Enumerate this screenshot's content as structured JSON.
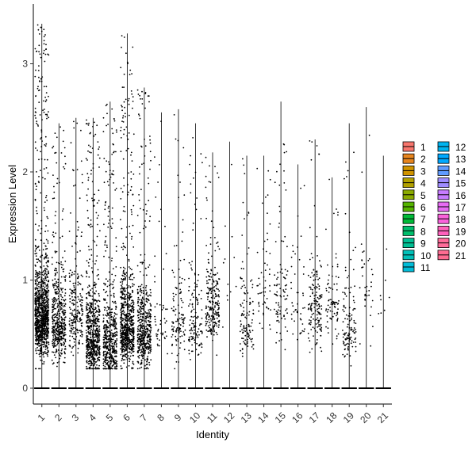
{
  "chart_data": {
    "type": "violin",
    "xlabel": "Identity",
    "ylabel": "Expression Level",
    "ylim": [
      -0.15,
      3.45
    ],
    "y_ticks": [
      0,
      1,
      2,
      3
    ],
    "grid": false,
    "legend_position": "right",
    "categories": [
      "1",
      "2",
      "3",
      "4",
      "5",
      "6",
      "7",
      "8",
      "9",
      "10",
      "11",
      "12",
      "13",
      "14",
      "15",
      "16",
      "17",
      "18",
      "19",
      "20",
      "21"
    ],
    "colors": [
      "#F8766D",
      "#E7851E",
      "#D09400",
      "#B2A100",
      "#8BAB00",
      "#55B400",
      "#00BA38",
      "#00BE6C",
      "#00C094",
      "#00C0B8",
      "#00BCD8",
      "#00B4F0",
      "#00A9FF",
      "#619CFF",
      "#9F8CFF",
      "#C77CFF",
      "#E76BF3",
      "#FA62DB",
      "#FF62BC",
      "#FF6C9A",
      "#FF6C91"
    ],
    "series": [
      {
        "category": "1",
        "max": 3.37,
        "points_est": 1100,
        "median_nonzero": 0.65
      },
      {
        "category": "2",
        "max": 2.45,
        "points_est": 450,
        "median_nonzero": 0.6
      },
      {
        "category": "3",
        "max": 2.5,
        "points_est": 220,
        "median_nonzero": 0.65
      },
      {
        "category": "4",
        "max": 2.5,
        "points_est": 650,
        "median_nonzero": 0.45
      },
      {
        "category": "5",
        "max": 2.65,
        "points_est": 520,
        "median_nonzero": 0.4
      },
      {
        "category": "6",
        "max": 3.28,
        "points_est": 750,
        "median_nonzero": 0.55
      },
      {
        "category": "7",
        "max": 2.78,
        "points_est": 500,
        "median_nonzero": 0.5
      },
      {
        "category": "8",
        "max": 2.55,
        "points_est": 50,
        "median_nonzero": 0.6
      },
      {
        "category": "9",
        "max": 2.58,
        "points_est": 120,
        "median_nonzero": 0.6
      },
      {
        "category": "10",
        "max": 2.45,
        "points_est": 130,
        "median_nonzero": 0.6
      },
      {
        "category": "11",
        "max": 2.18,
        "points_est": 230,
        "median_nonzero": 0.75
      },
      {
        "category": "12",
        "max": 2.28,
        "points_est": 12,
        "median_nonzero": 1.0
      },
      {
        "category": "13",
        "max": 2.15,
        "points_est": 120,
        "median_nonzero": 0.6
      },
      {
        "category": "14",
        "max": 2.15,
        "points_est": 55,
        "median_nonzero": 0.9
      },
      {
        "category": "15",
        "max": 2.65,
        "points_est": 90,
        "median_nonzero": 0.8
      },
      {
        "category": "16",
        "max": 2.07,
        "points_est": 45,
        "median_nonzero": 0.7
      },
      {
        "category": "17",
        "max": 2.3,
        "points_est": 150,
        "median_nonzero": 0.75
      },
      {
        "category": "18",
        "max": 1.95,
        "points_est": 80,
        "median_nonzero": 0.8
      },
      {
        "category": "19",
        "max": 2.45,
        "points_est": 120,
        "median_nonzero": 0.55
      },
      {
        "category": "20",
        "max": 2.6,
        "points_est": 35,
        "median_nonzero": 0.9
      },
      {
        "category": "21",
        "max": 2.15,
        "points_est": 8,
        "median_nonzero": 0.8
      }
    ]
  }
}
